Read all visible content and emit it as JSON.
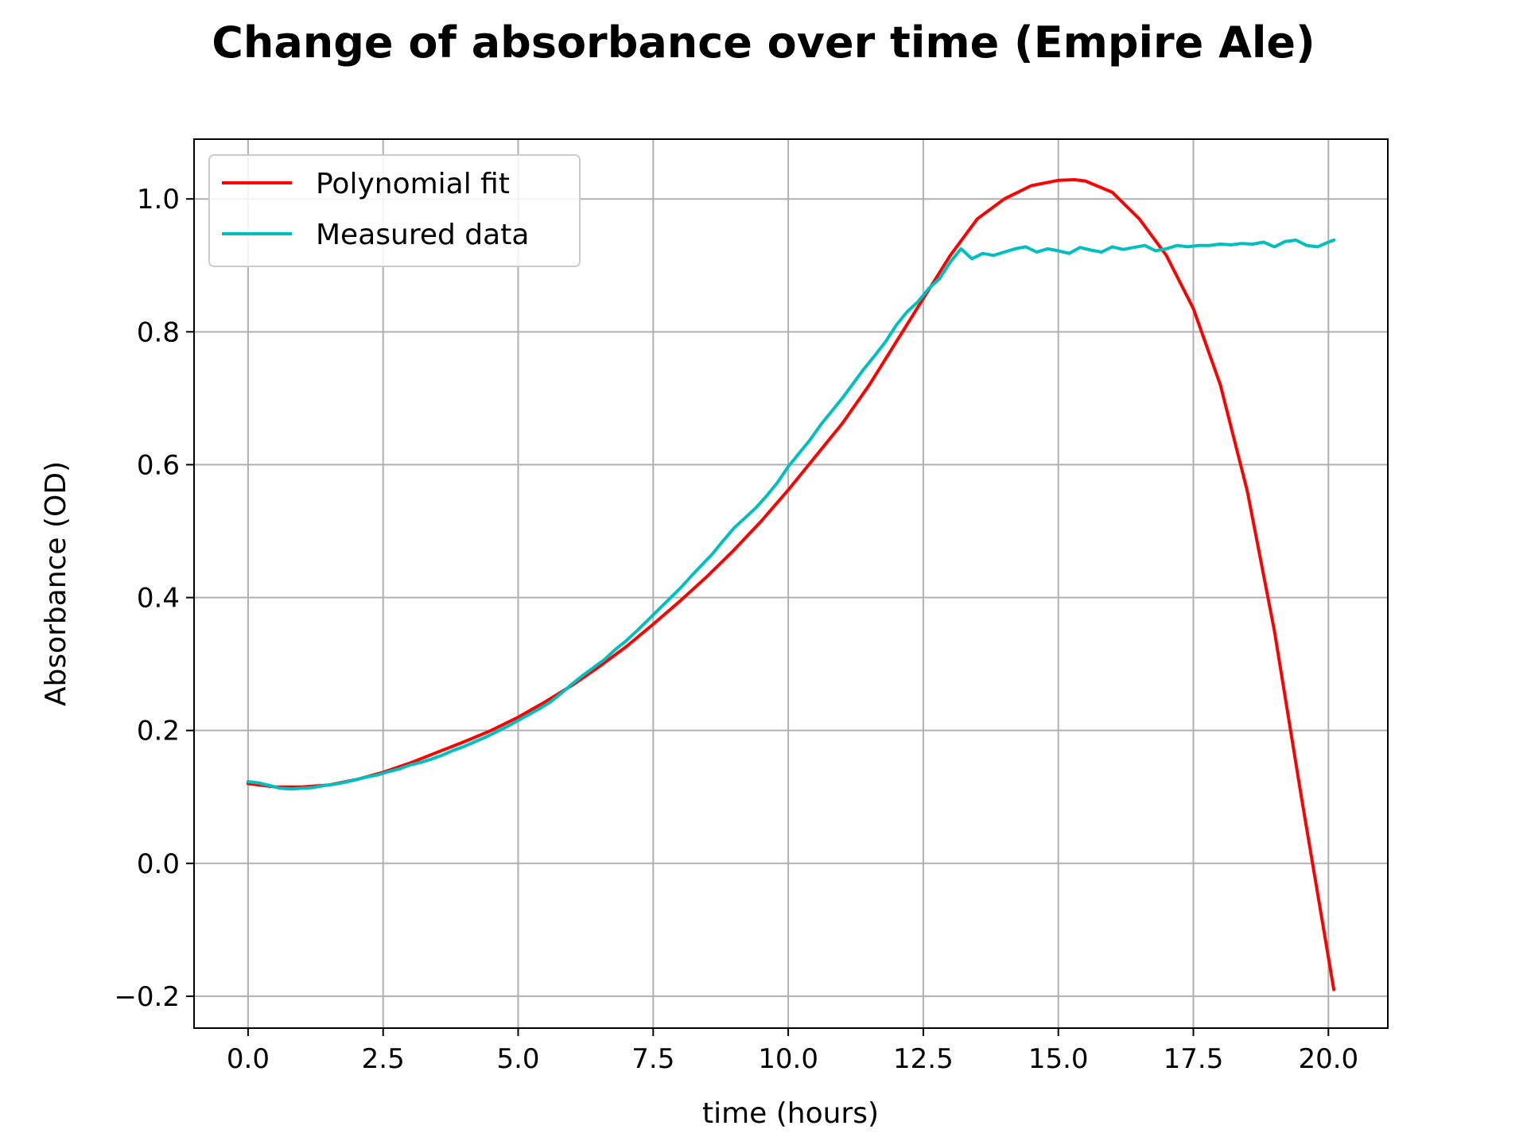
{
  "chart_data": {
    "type": "line",
    "title": "Change of absorbance over time (Empire Ale)",
    "xlabel": "time (hours)",
    "ylabel": "Absorbance (OD)",
    "xlim": [
      -1.0,
      21.1
    ],
    "ylim": [
      -0.248,
      1.09
    ],
    "xticks": [
      0.0,
      2.5,
      5.0,
      7.5,
      10.0,
      12.5,
      15.0,
      17.5,
      20.0
    ],
    "xtick_labels": [
      "0.0",
      "2.5",
      "5.0",
      "7.5",
      "10.0",
      "12.5",
      "15.0",
      "17.5",
      "20.0"
    ],
    "yticks": [
      -0.2,
      0.0,
      0.2,
      0.4,
      0.6,
      0.8,
      1.0
    ],
    "ytick_labels": [
      "−0.2",
      "0.0",
      "0.2",
      "0.4",
      "0.6",
      "0.8",
      "1.0"
    ],
    "grid": true,
    "legend_position": "top-left",
    "series": [
      {
        "name": "Polynomial fit",
        "color": "#ff0000",
        "x": [
          0.0,
          0.5,
          1.0,
          1.5,
          2.0,
          2.5,
          3.0,
          3.5,
          4.0,
          4.5,
          5.0,
          5.5,
          6.0,
          6.5,
          7.0,
          7.5,
          8.0,
          8.5,
          9.0,
          9.5,
          10.0,
          10.5,
          11.0,
          11.5,
          12.0,
          12.5,
          13.0,
          13.5,
          14.0,
          14.5,
          15.0,
          15.3,
          15.5,
          16.0,
          16.5,
          17.0,
          17.5,
          18.0,
          18.5,
          19.0,
          19.5,
          20.1
        ],
        "y": [
          0.12,
          0.115,
          0.115,
          0.118,
          0.126,
          0.137,
          0.151,
          0.167,
          0.183,
          0.2,
          0.22,
          0.243,
          0.268,
          0.296,
          0.326,
          0.36,
          0.395,
          0.432,
          0.472,
          0.515,
          0.562,
          0.612,
          0.662,
          0.72,
          0.785,
          0.85,
          0.915,
          0.97,
          1.0,
          1.02,
          1.028,
          1.029,
          1.027,
          1.01,
          0.97,
          0.915,
          0.835,
          0.72,
          0.56,
          0.35,
          0.1,
          -0.19
        ]
      },
      {
        "name": "Measured data",
        "color": "#00bfbf",
        "x": [
          0.0,
          0.2,
          0.4,
          0.6,
          0.8,
          1.0,
          1.2,
          1.4,
          1.6,
          1.8,
          2.0,
          2.2,
          2.4,
          2.6,
          2.8,
          3.0,
          3.2,
          3.4,
          3.6,
          3.8,
          4.0,
          4.2,
          4.4,
          4.6,
          4.8,
          5.0,
          5.2,
          5.4,
          5.6,
          5.8,
          6.0,
          6.2,
          6.4,
          6.6,
          6.8,
          7.0,
          7.2,
          7.4,
          7.6,
          7.8,
          8.0,
          8.2,
          8.4,
          8.6,
          8.8,
          9.0,
          9.2,
          9.4,
          9.6,
          9.8,
          10.0,
          10.2,
          10.4,
          10.6,
          10.8,
          11.0,
          11.2,
          11.4,
          11.6,
          11.8,
          12.0,
          12.2,
          12.4,
          12.6,
          12.8,
          13.0,
          13.2,
          13.4,
          13.6,
          13.8,
          14.0,
          14.2,
          14.4,
          14.6,
          14.8,
          15.0,
          15.2,
          15.4,
          15.6,
          15.8,
          16.0,
          16.2,
          16.4,
          16.6,
          16.8,
          17.0,
          17.2,
          17.4,
          17.6,
          17.8,
          18.0,
          18.2,
          18.4,
          18.6,
          18.8,
          19.0,
          19.2,
          19.4,
          19.6,
          19.8,
          20.0,
          20.1
        ],
        "y": [
          0.123,
          0.121,
          0.117,
          0.113,
          0.112,
          0.113,
          0.114,
          0.117,
          0.119,
          0.122,
          0.126,
          0.13,
          0.133,
          0.138,
          0.142,
          0.148,
          0.152,
          0.157,
          0.163,
          0.17,
          0.176,
          0.183,
          0.19,
          0.198,
          0.206,
          0.215,
          0.224,
          0.233,
          0.243,
          0.256,
          0.27,
          0.283,
          0.295,
          0.307,
          0.322,
          0.335,
          0.35,
          0.366,
          0.382,
          0.398,
          0.414,
          0.432,
          0.449,
          0.466,
          0.486,
          0.505,
          0.52,
          0.535,
          0.553,
          0.573,
          0.597,
          0.617,
          0.637,
          0.66,
          0.68,
          0.7,
          0.722,
          0.744,
          0.764,
          0.785,
          0.81,
          0.83,
          0.845,
          0.865,
          0.88,
          0.905,
          0.925,
          0.91,
          0.918,
          0.915,
          0.92,
          0.925,
          0.928,
          0.92,
          0.925,
          0.922,
          0.918,
          0.927,
          0.923,
          0.92,
          0.928,
          0.924,
          0.927,
          0.93,
          0.922,
          0.925,
          0.93,
          0.928,
          0.93,
          0.93,
          0.932,
          0.931,
          0.933,
          0.932,
          0.935,
          0.928,
          0.936,
          0.938,
          0.93,
          0.928,
          0.935,
          0.938
        ]
      }
    ]
  }
}
